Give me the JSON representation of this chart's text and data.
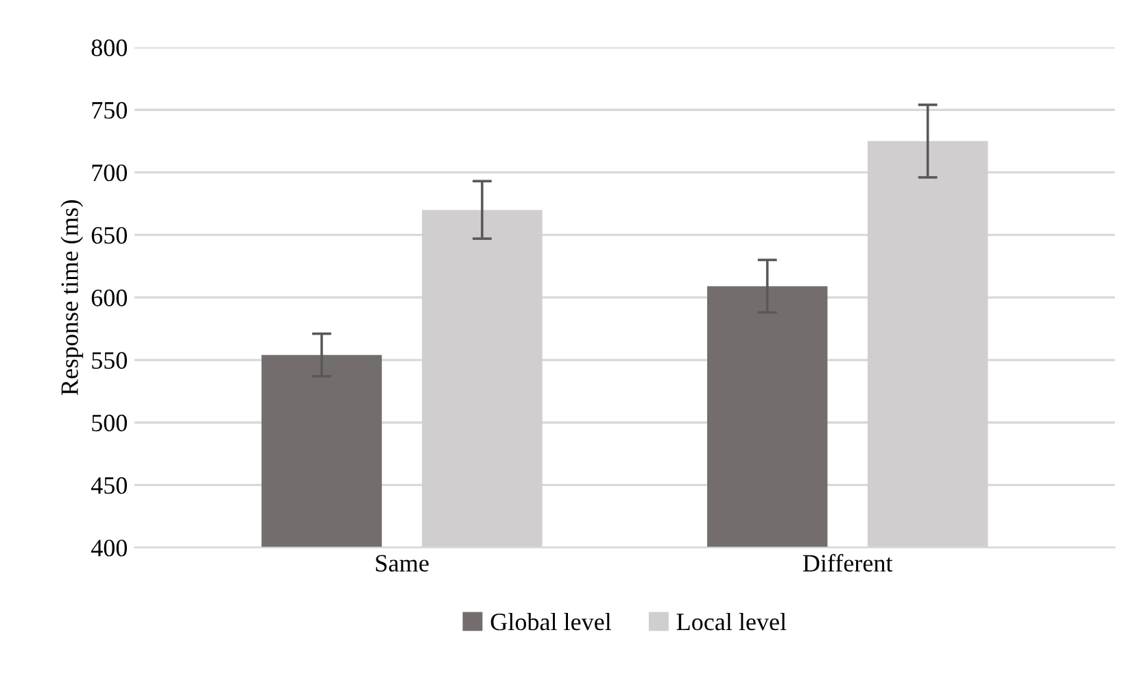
{
  "chart_data": {
    "type": "bar",
    "ylabel": "Response time (ms)",
    "categories": [
      "Same",
      "Different"
    ],
    "series": [
      {
        "name": "Global level",
        "color": "#736e6d",
        "values": [
          554,
          609
        ],
        "errors": [
          17,
          21
        ]
      },
      {
        "name": "Local level",
        "color": "#d0cecf",
        "values": [
          670,
          725
        ],
        "errors": [
          23,
          29
        ]
      }
    ],
    "ylim": [
      400,
      800
    ],
    "yticks": [
      400,
      450,
      500,
      550,
      600,
      650,
      700,
      750,
      800
    ],
    "grid": "y",
    "legend": "bottom"
  }
}
